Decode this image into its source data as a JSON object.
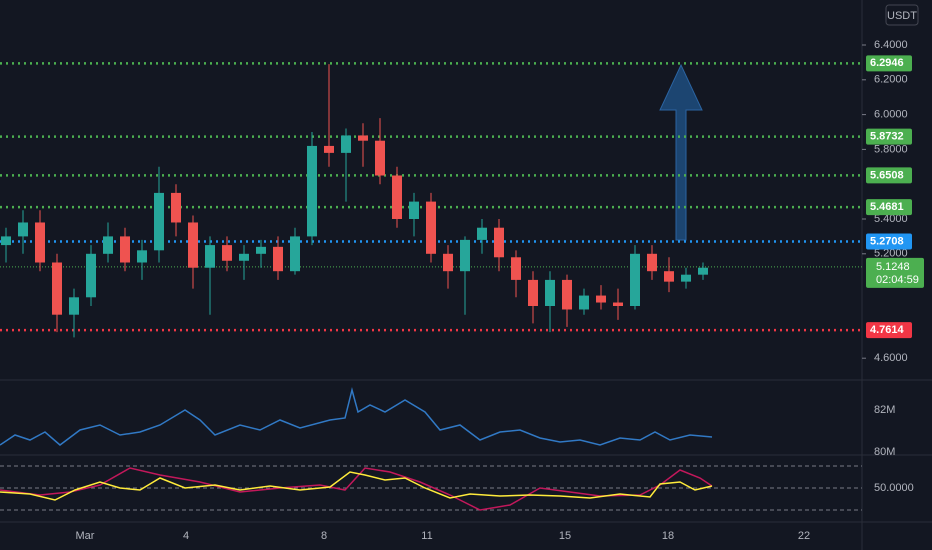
{
  "chart": {
    "quote": "USDT",
    "price_ticks": [
      {
        "value": 6.4,
        "label": "6.4000"
      },
      {
        "value": 6.2,
        "label": "6.2000"
      },
      {
        "value": 6.0,
        "label": "6.0000"
      },
      {
        "value": 5.8,
        "label": "5.8000"
      },
      {
        "value": 5.4,
        "label": "5.4000"
      },
      {
        "value": 5.2,
        "label": "5.2000"
      },
      {
        "value": 4.6,
        "label": "4.6000"
      }
    ],
    "levels": [
      {
        "value": 6.2946,
        "color": "#4caf50"
      },
      {
        "value": 5.8732,
        "color": "#4caf50"
      },
      {
        "value": 5.6508,
        "color": "#4caf50"
      },
      {
        "value": 5.4681,
        "color": "#4caf50"
      },
      {
        "value": 5.2708,
        "color": "#2196f3"
      },
      {
        "value": 4.7614,
        "color": "#f23645"
      }
    ],
    "current": {
      "value": 5.1248,
      "countdown": "02:04:59",
      "color": "#4caf50"
    },
    "volume_labels": [
      "82M",
      "80M"
    ],
    "oscillator_label": "50.0000",
    "dates": [
      "Mar",
      "4",
      "8",
      "11",
      "15",
      "18",
      "22"
    ],
    "up_color": "#26a69a",
    "down_color": "#ef5350",
    "candles": [
      [
        5.25,
        5.35,
        5.15,
        5.3
      ],
      [
        5.3,
        5.45,
        5.2,
        5.38
      ],
      [
        5.38,
        5.45,
        5.1,
        5.15
      ],
      [
        5.15,
        5.2,
        4.75,
        4.85
      ],
      [
        4.85,
        5.0,
        4.72,
        4.95
      ],
      [
        4.95,
        5.25,
        4.9,
        5.2
      ],
      [
        5.2,
        5.38,
        5.15,
        5.3
      ],
      [
        5.3,
        5.35,
        5.1,
        5.15
      ],
      [
        5.15,
        5.28,
        5.05,
        5.22
      ],
      [
        5.22,
        5.7,
        5.15,
        5.55
      ],
      [
        5.55,
        5.6,
        5.3,
        5.38
      ],
      [
        5.38,
        5.42,
        5.0,
        5.12
      ],
      [
        5.12,
        5.3,
        4.85,
        5.25
      ],
      [
        5.25,
        5.3,
        5.1,
        5.16
      ],
      [
        5.16,
        5.25,
        5.05,
        5.2
      ],
      [
        5.2,
        5.28,
        5.12,
        5.24
      ],
      [
        5.24,
        5.3,
        5.05,
        5.1
      ],
      [
        5.1,
        5.35,
        5.08,
        5.3
      ],
      [
        5.3,
        5.9,
        5.25,
        5.82
      ],
      [
        5.82,
        6.29,
        5.7,
        5.78
      ],
      [
        5.78,
        5.92,
        5.5,
        5.88
      ],
      [
        5.88,
        5.95,
        5.7,
        5.85
      ],
      [
        5.85,
        5.98,
        5.6,
        5.65
      ],
      [
        5.65,
        5.7,
        5.35,
        5.4
      ],
      [
        5.4,
        5.55,
        5.3,
        5.5
      ],
      [
        5.5,
        5.55,
        5.15,
        5.2
      ],
      [
        5.2,
        5.25,
        5.0,
        5.1
      ],
      [
        5.1,
        5.3,
        4.85,
        5.28
      ],
      [
        5.28,
        5.4,
        5.2,
        5.35
      ],
      [
        5.35,
        5.4,
        5.1,
        5.18
      ],
      [
        5.18,
        5.22,
        4.95,
        5.05
      ],
      [
        5.05,
        5.1,
        4.8,
        4.9
      ],
      [
        4.9,
        5.1,
        4.75,
        5.05
      ],
      [
        5.05,
        5.08,
        4.78,
        4.88
      ],
      [
        4.88,
        5.0,
        4.85,
        4.96
      ],
      [
        4.96,
        5.02,
        4.88,
        4.92
      ],
      [
        4.92,
        5.0,
        4.82,
        4.9
      ],
      [
        4.9,
        5.25,
        4.88,
        5.2
      ],
      [
        5.2,
        5.25,
        5.05,
        5.1
      ],
      [
        5.1,
        5.18,
        4.98,
        5.04
      ],
      [
        5.04,
        5.12,
        5.0,
        5.08
      ],
      [
        5.08,
        5.15,
        5.05,
        5.12
      ]
    ]
  }
}
